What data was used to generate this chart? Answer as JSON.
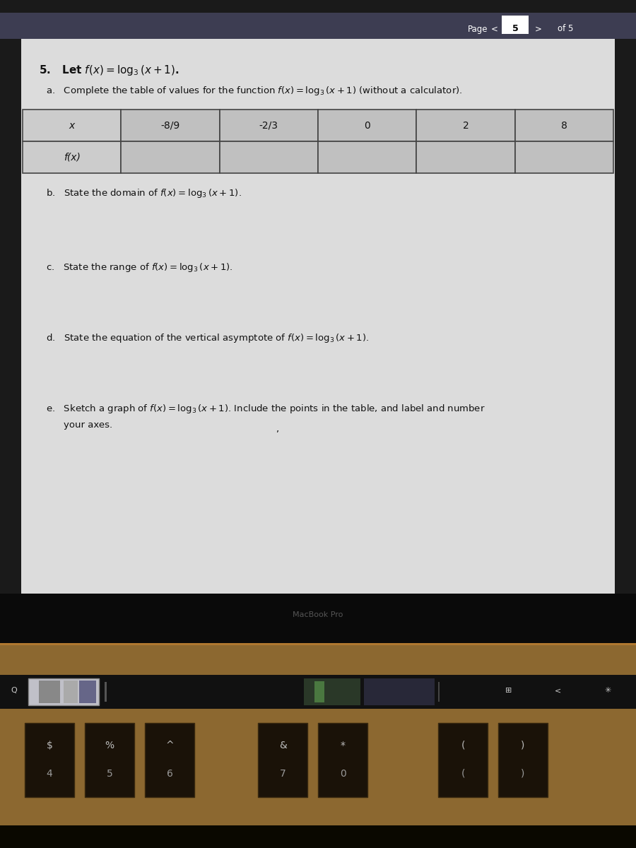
{
  "page_bg": "#1a1a1a",
  "screen_bezel_top": "#1a1a1a",
  "header_bg": "#3d3d52",
  "header_text": "Page",
  "page_num": "5",
  "of_text": "of 5",
  "paper_bg": "#dcdcdc",
  "paper_bg2": "#c8c8c8",
  "text_color": "#111111",
  "table_border": "#555555",
  "table_header_bg": "#cccccc",
  "table_cell_bg": "#c4c4c4",
  "problem_intro": "5.  Let $f(x)=\\log_3(x+1)$.",
  "part_a_text": "a.   Complete the table of values for the function $f(x)=\\log_3(x+1)$ (without a calculator).",
  "table_x_row": [
    "x",
    "-8/9",
    "-2/3",
    "0",
    "2",
    "8"
  ],
  "table_fx_row": [
    "f(x)",
    "",
    "",
    "",
    "",
    ""
  ],
  "part_b_text": "b.   State the domain of $f(x)=\\log_3(x+1)$.",
  "part_c_text": "c.   State the range of $f(x)=\\log_3(x+1)$.",
  "part_d_text": "d.   State the equation of the vertical asymptote of $f(x)=\\log_3(x+1)$.",
  "part_e_text": "e.   Sketch a graph of $f(x)=\\log_3(x+1)$. Include the points in the table, and label and number",
  "part_e_text2": "your axes.",
  "macbook_text": "MacBook Pro",
  "macbook_body_bg": "#0a0a0a",
  "macbook_body_color": "#555555",
  "palm_rest_bg": "#8c6830",
  "palm_rest_border": "#b07830",
  "touchbar_bg": "#111111",
  "touchbar_item_bg": "#333333",
  "key_bg": "#1a1208",
  "key_text": "#bbbbbb",
  "key_subtext": "#999999",
  "bottom_bg": "#0a0800",
  "tb_left_icon_color": "#cccccc",
  "tb_white_box_bg": "#c0c0c8",
  "tb_green_bg": "#3a6030",
  "tb_blue_bg": "#2a2a40"
}
